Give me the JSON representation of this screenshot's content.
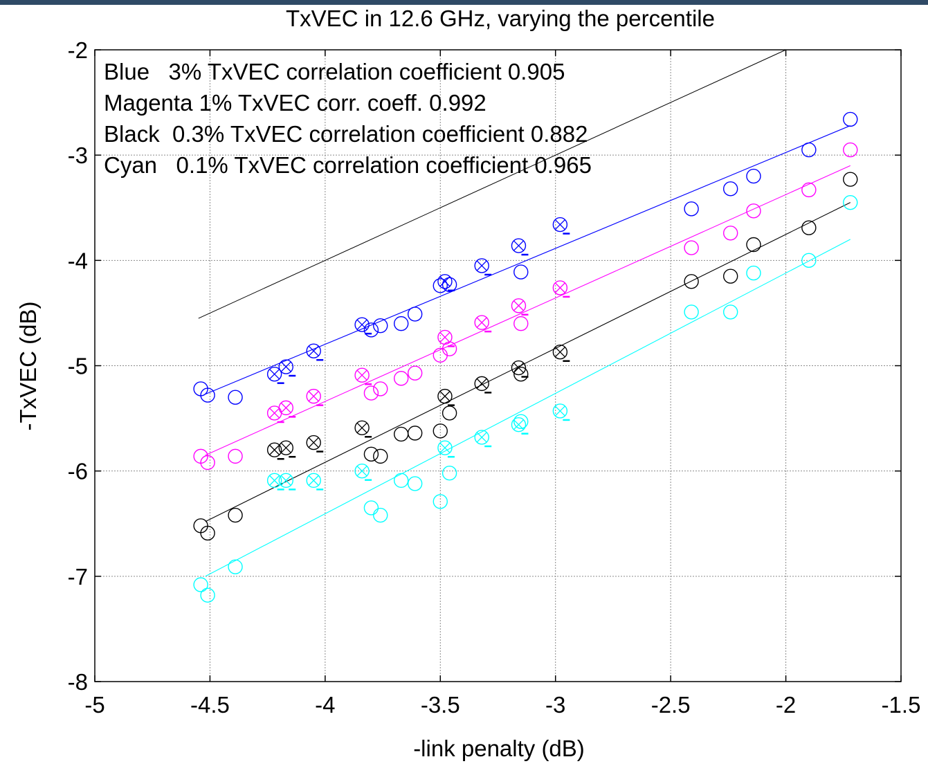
{
  "chart_data": {
    "type": "scatter",
    "title": "TxVEC in 12.6 GHz, varying the percentile",
    "xlabel": "-link penalty (dB)",
    "ylabel": "-TxVEC (dB)",
    "xlim": [
      -5,
      -1.5
    ],
    "ylim": [
      -8,
      -2
    ],
    "xticks": [
      -5,
      -4.5,
      -4,
      -3.5,
      -3,
      -2.5,
      -2,
      -1.5
    ],
    "yticks": [
      -8,
      -7,
      -6,
      -5,
      -4,
      -3,
      -2
    ],
    "xtick_labels": [
      "-5",
      "-4.5",
      "-4",
      "-3.5",
      "-3",
      "-2.5",
      "-2",
      "-1.5"
    ],
    "ytick_labels": [
      "-8",
      "-7",
      "-6",
      "-5",
      "-4",
      "-3",
      "-2"
    ],
    "grid": true,
    "annotations": [
      "Blue   3% TxVEC correlation coefficient 0.905",
      "Magenta 1% TxVEC corr. coeff. 0.992",
      "Black  0.3% TxVEC correlation coefficient 0.882",
      "Cyan   0.1% TxVEC correlation coefficient 0.965"
    ],
    "reference_line": {
      "color": "#000000",
      "x": [
        -4.55,
        -2.0
      ],
      "y": [
        -4.55,
        -2.0
      ]
    },
    "series": [
      {
        "color": "#0000ff",
        "fit": {
          "x": [
            -4.52,
            -1.72
          ],
          "y": [
            -5.27,
            -2.72
          ]
        },
        "circles": [
          [
            -4.54,
            -5.22
          ],
          [
            -4.51,
            -5.28
          ],
          [
            -4.39,
            -5.3
          ],
          [
            -3.8,
            -4.66
          ],
          [
            -3.76,
            -4.62
          ],
          [
            -3.67,
            -4.6
          ],
          [
            -3.61,
            -4.51
          ],
          [
            -3.5,
            -4.24
          ],
          [
            -3.46,
            -4.23
          ],
          [
            -3.15,
            -4.11
          ],
          [
            -2.41,
            -3.51
          ],
          [
            -2.24,
            -3.32
          ],
          [
            -2.14,
            -3.2
          ],
          [
            -1.9,
            -2.95
          ],
          [
            -1.72,
            -2.66
          ]
        ],
        "crossed": [
          [
            -4.22,
            -5.08
          ],
          [
            -4.17,
            -5.01
          ],
          [
            -4.05,
            -4.86
          ],
          [
            -3.84,
            -4.61
          ],
          [
            -3.48,
            -4.2
          ],
          [
            -3.32,
            -4.05
          ],
          [
            -3.16,
            -3.86
          ],
          [
            -2.98,
            -3.66
          ]
        ]
      },
      {
        "color": "#ff00ff",
        "fit": {
          "x": [
            -4.52,
            -1.72
          ],
          "y": [
            -5.85,
            -3.1
          ]
        },
        "circles": [
          [
            -4.54,
            -5.86
          ],
          [
            -4.51,
            -5.92
          ],
          [
            -4.39,
            -5.86
          ],
          [
            -3.8,
            -5.26
          ],
          [
            -3.76,
            -5.22
          ],
          [
            -3.67,
            -5.12
          ],
          [
            -3.61,
            -5.07
          ],
          [
            -3.5,
            -4.9
          ],
          [
            -3.46,
            -4.84
          ],
          [
            -3.15,
            -4.6
          ],
          [
            -2.41,
            -3.88
          ],
          [
            -2.24,
            -3.74
          ],
          [
            -2.14,
            -3.53
          ],
          [
            -1.9,
            -3.33
          ],
          [
            -1.72,
            -2.95
          ]
        ],
        "crossed": [
          [
            -4.22,
            -5.45
          ],
          [
            -4.17,
            -5.4
          ],
          [
            -4.05,
            -5.29
          ],
          [
            -3.84,
            -5.09
          ],
          [
            -3.48,
            -4.73
          ],
          [
            -3.32,
            -4.59
          ],
          [
            -3.16,
            -4.43
          ],
          [
            -2.98,
            -4.26
          ]
        ]
      },
      {
        "color": "#000000",
        "fit": {
          "x": [
            -4.52,
            -1.72
          ],
          "y": [
            -6.48,
            -3.45
          ]
        },
        "circles": [
          [
            -4.54,
            -6.52
          ],
          [
            -4.51,
            -6.59
          ],
          [
            -4.39,
            -6.42
          ],
          [
            -3.8,
            -5.84
          ],
          [
            -3.76,
            -5.86
          ],
          [
            -3.67,
            -5.65
          ],
          [
            -3.61,
            -5.64
          ],
          [
            -3.5,
            -5.62
          ],
          [
            -3.46,
            -5.45
          ],
          [
            -3.15,
            -5.08
          ],
          [
            -2.41,
            -4.2
          ],
          [
            -2.24,
            -4.15
          ],
          [
            -2.14,
            -3.85
          ],
          [
            -1.9,
            -3.69
          ],
          [
            -1.72,
            -3.23
          ]
        ],
        "crossed": [
          [
            -4.22,
            -5.8
          ],
          [
            -4.17,
            -5.78
          ],
          [
            -4.05,
            -5.73
          ],
          [
            -3.84,
            -5.59
          ],
          [
            -3.48,
            -5.29
          ],
          [
            -3.32,
            -5.17
          ],
          [
            -3.16,
            -5.02
          ],
          [
            -2.98,
            -4.87
          ]
        ]
      },
      {
        "color": "#00ffff",
        "fit": {
          "x": [
            -4.52,
            -1.72
          ],
          "y": [
            -7.0,
            -3.8
          ]
        },
        "circles": [
          [
            -4.54,
            -7.08
          ],
          [
            -4.51,
            -7.18
          ],
          [
            -4.39,
            -6.91
          ],
          [
            -3.8,
            -6.35
          ],
          [
            -3.76,
            -6.42
          ],
          [
            -3.67,
            -6.09
          ],
          [
            -3.61,
            -6.12
          ],
          [
            -3.5,
            -6.29
          ],
          [
            -3.46,
            -6.02
          ],
          [
            -3.15,
            -5.53
          ],
          [
            -2.41,
            -4.49
          ],
          [
            -2.24,
            -4.49
          ],
          [
            -2.14,
            -4.12
          ],
          [
            -1.9,
            -4.0
          ],
          [
            -1.72,
            -3.45
          ]
        ],
        "crossed": [
          [
            -4.22,
            -6.09
          ],
          [
            -4.17,
            -6.09
          ],
          [
            -4.05,
            -6.09
          ],
          [
            -3.84,
            -6.0
          ],
          [
            -3.48,
            -5.78
          ],
          [
            -3.32,
            -5.68
          ],
          [
            -3.16,
            -5.56
          ],
          [
            -2.98,
            -5.43
          ]
        ]
      }
    ]
  }
}
